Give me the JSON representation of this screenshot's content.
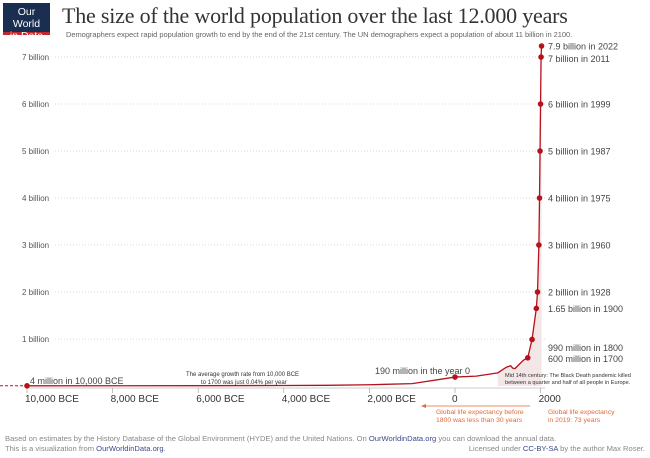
{
  "logo": {
    "line1": "Our World",
    "line2": "in Data"
  },
  "title": "The size of the world population over the last 12.000 years",
  "subtitle": "Demographers expect rapid population growth to end by the end of the 21st century. The UN demographers expect a population of about 11 billion in 2100.",
  "colors": {
    "line": "#b5121b",
    "area": "#f3e6e6",
    "annotation": "#e06a3a",
    "logo_bg": "#1a2e52"
  },
  "chart_data": {
    "type": "line",
    "xlim": [
      -10500,
      2022
    ],
    "ylim": [
      0,
      7.9
    ],
    "y_unit": "billion",
    "yticks": [
      {
        "v": 1,
        "label": "1 billion"
      },
      {
        "v": 2,
        "label": "2 billion"
      },
      {
        "v": 3,
        "label": "3 billion"
      },
      {
        "v": 4,
        "label": "4 billion"
      },
      {
        "v": 5,
        "label": "5 billion"
      },
      {
        "v": 6,
        "label": "6 billion"
      },
      {
        "v": 7,
        "label": "7 billion"
      }
    ],
    "xticks": [
      {
        "v": -10000,
        "label": "10,000 BCE"
      },
      {
        "v": -8000,
        "label": "8,000 BCE"
      },
      {
        "v": -6000,
        "label": "6,000 BCE"
      },
      {
        "v": -4000,
        "label": "4,000 BCE"
      },
      {
        "v": -2000,
        "label": "2,000 BCE"
      },
      {
        "v": 0,
        "label": "0"
      },
      {
        "v": 2000,
        "label": "2000"
      }
    ],
    "grid": "horizontal-dotted",
    "series": [
      {
        "x": [
          -10000,
          -8000,
          -6000,
          -4000,
          -3000,
          -2000,
          -1000,
          0,
          500,
          1000,
          1200,
          1300,
          1350,
          1400,
          1500,
          1600,
          1700,
          1800,
          1900,
          1928,
          1960,
          1975,
          1987,
          1999,
          2011,
          2022
        ],
        "y": [
          0.004,
          0.005,
          0.007,
          0.01,
          0.015,
          0.027,
          0.05,
          0.19,
          0.21,
          0.28,
          0.4,
          0.43,
          0.38,
          0.37,
          0.46,
          0.55,
          0.6,
          0.99,
          1.65,
          2.0,
          3.0,
          4.0,
          5.0,
          6.0,
          7.0,
          7.9
        ]
      }
    ],
    "labeled_points": [
      {
        "x": -10000,
        "y": 0.004,
        "label": "4 million in 10,000 BCE"
      },
      {
        "x": 0,
        "y": 0.19,
        "label": "190 million in the year 0"
      },
      {
        "x": 1700,
        "y": 0.6,
        "label": "600 million in 1700"
      },
      {
        "x": 1800,
        "y": 0.99,
        "label": "990 million in 1800"
      },
      {
        "x": 1900,
        "y": 1.65,
        "label": "1.65 billion in 1900"
      },
      {
        "x": 1928,
        "y": 2.0,
        "label": "2 billion in 1928"
      },
      {
        "x": 1960,
        "y": 3.0,
        "label": "3 billion in 1960"
      },
      {
        "x": 1975,
        "y": 4.0,
        "label": "4 billion in 1975"
      },
      {
        "x": 1987,
        "y": 5.0,
        "label": "5 billion in 1987"
      },
      {
        "x": 1999,
        "y": 6.0,
        "label": "6 billion in 1999"
      },
      {
        "x": 2011,
        "y": 7.0,
        "label": "7 billion in 2011"
      },
      {
        "x": 2022,
        "y": 7.9,
        "label": "7.9 billion in 2022"
      }
    ],
    "annotations": {
      "growth1": "The average growth rate from 10,000 BCE",
      "growth2": "to 1700 was just  0.04% per year",
      "death1": "Mid 14th century: The Black Death pandemic killed",
      "death2": "between a quarter and half of all people in Europe.",
      "life_before1": "Global life expectancy before",
      "life_before2": "1800 was less than 30 years",
      "life_now1": "Global life expectancy",
      "life_now2": "in 2019: 73 years"
    }
  },
  "footer": {
    "line1a": "Based on estimates by the History Database of the Global Environment (HYDE) and the United Nations. On ",
    "line1link": "OurWorldinData.org",
    "line1b": " you can download the annual data.",
    "line2a": "This is a visualization from ",
    "line2link": "OurWorldinData.org",
    "line2b": ".",
    "licA": "Licensed under ",
    "licLink": "CC-BY-SA",
    "licB": " by the author Max Roser."
  }
}
